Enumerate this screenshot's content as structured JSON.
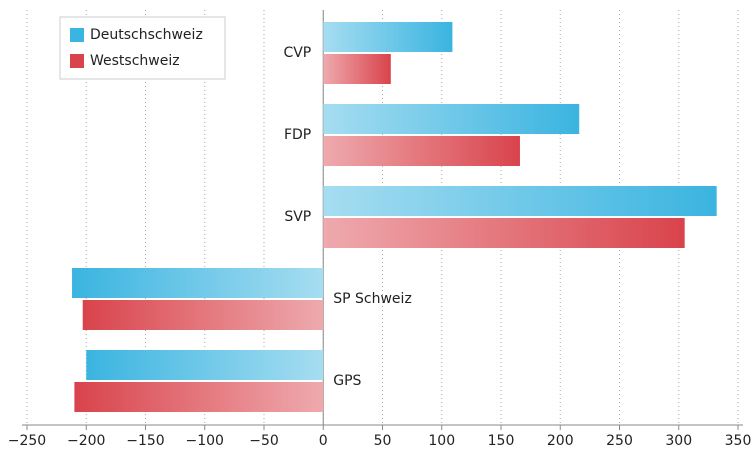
{
  "chart_data": {
    "type": "barh",
    "categories": [
      "CVP",
      "FDP",
      "SVP",
      "SP Schweiz",
      "GPS"
    ],
    "series": [
      {
        "name": "Deutschschweiz",
        "color": "#3ab4e0",
        "values": [
          109,
          216,
          332,
          -212,
          -200
        ]
      },
      {
        "name": "Westschweiz",
        "color": "#d9434b",
        "values": [
          57,
          166,
          305,
          -203,
          -210
        ]
      }
    ],
    "xlim": [
      -250,
      350
    ],
    "xticks": [
      {
        "value": -250,
        "label": "−250"
      },
      {
        "value": -200,
        "label": "−200"
      },
      {
        "value": -150,
        "label": "−150"
      },
      {
        "value": -100,
        "label": "−100"
      },
      {
        "value": -50,
        "label": "−50"
      },
      0,
      50,
      100,
      150,
      200,
      250,
      300,
      350
    ],
    "grid": true,
    "legend": "upper left"
  }
}
